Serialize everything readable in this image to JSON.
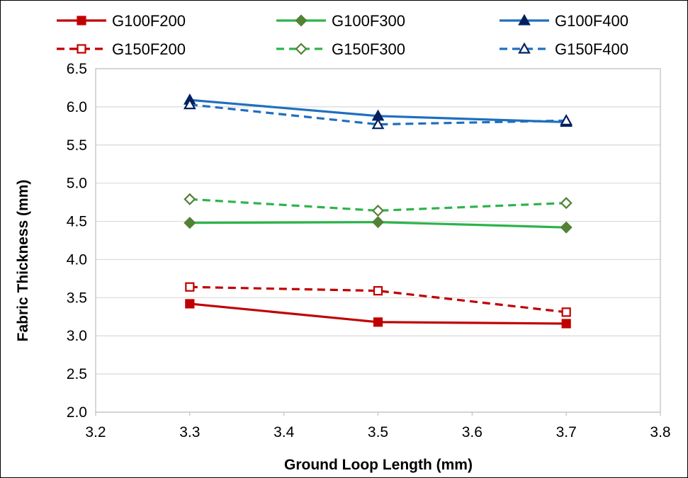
{
  "chart_data": {
    "type": "line",
    "title": "",
    "xlabel": "Ground Loop Length (mm)",
    "ylabel": "Fabric Thickness (mm)",
    "xlim": [
      3.2,
      3.8
    ],
    "ylim": [
      2.0,
      6.5
    ],
    "x_ticks": [
      "3.2",
      "3.3",
      "3.4",
      "3.5",
      "3.6",
      "3.7",
      "3.8"
    ],
    "y_ticks": [
      "2.0",
      "2.5",
      "3.0",
      "3.5",
      "4.0",
      "4.5",
      "5.0",
      "5.5",
      "6.0",
      "6.5"
    ],
    "grid": "horizontal",
    "legend_position": "top",
    "x": [
      3.3,
      3.5,
      3.7
    ],
    "series": [
      {
        "name": "G100F200",
        "values": [
          3.42,
          3.18,
          3.16
        ],
        "color": "#c00000",
        "dash": "solid",
        "marker": "square",
        "marker_fill": "filled"
      },
      {
        "name": "G100F300",
        "values": [
          4.48,
          4.49,
          4.42
        ],
        "color": "#2eb34b",
        "marker_color": "#538135",
        "dash": "solid",
        "marker": "diamond",
        "marker_fill": "filled"
      },
      {
        "name": "G100F400",
        "values": [
          6.09,
          5.88,
          5.8
        ],
        "color": "#1f6fc0",
        "marker_color": "#002060",
        "dash": "solid",
        "marker": "triangle",
        "marker_fill": "filled"
      },
      {
        "name": "G150F200",
        "values": [
          3.64,
          3.59,
          3.31
        ],
        "color": "#c00000",
        "dash": "dashed",
        "marker": "square",
        "marker_fill": "open"
      },
      {
        "name": "G150F300",
        "values": [
          4.79,
          4.64,
          4.74
        ],
        "color": "#2eb34b",
        "marker_color": "#538135",
        "dash": "dashed",
        "marker": "diamond",
        "marker_fill": "open"
      },
      {
        "name": "G150F400",
        "values": [
          6.03,
          5.77,
          5.82
        ],
        "color": "#1f6fc0",
        "marker_color": "#002060",
        "dash": "dashed",
        "marker": "triangle",
        "marker_fill": "open"
      }
    ]
  }
}
